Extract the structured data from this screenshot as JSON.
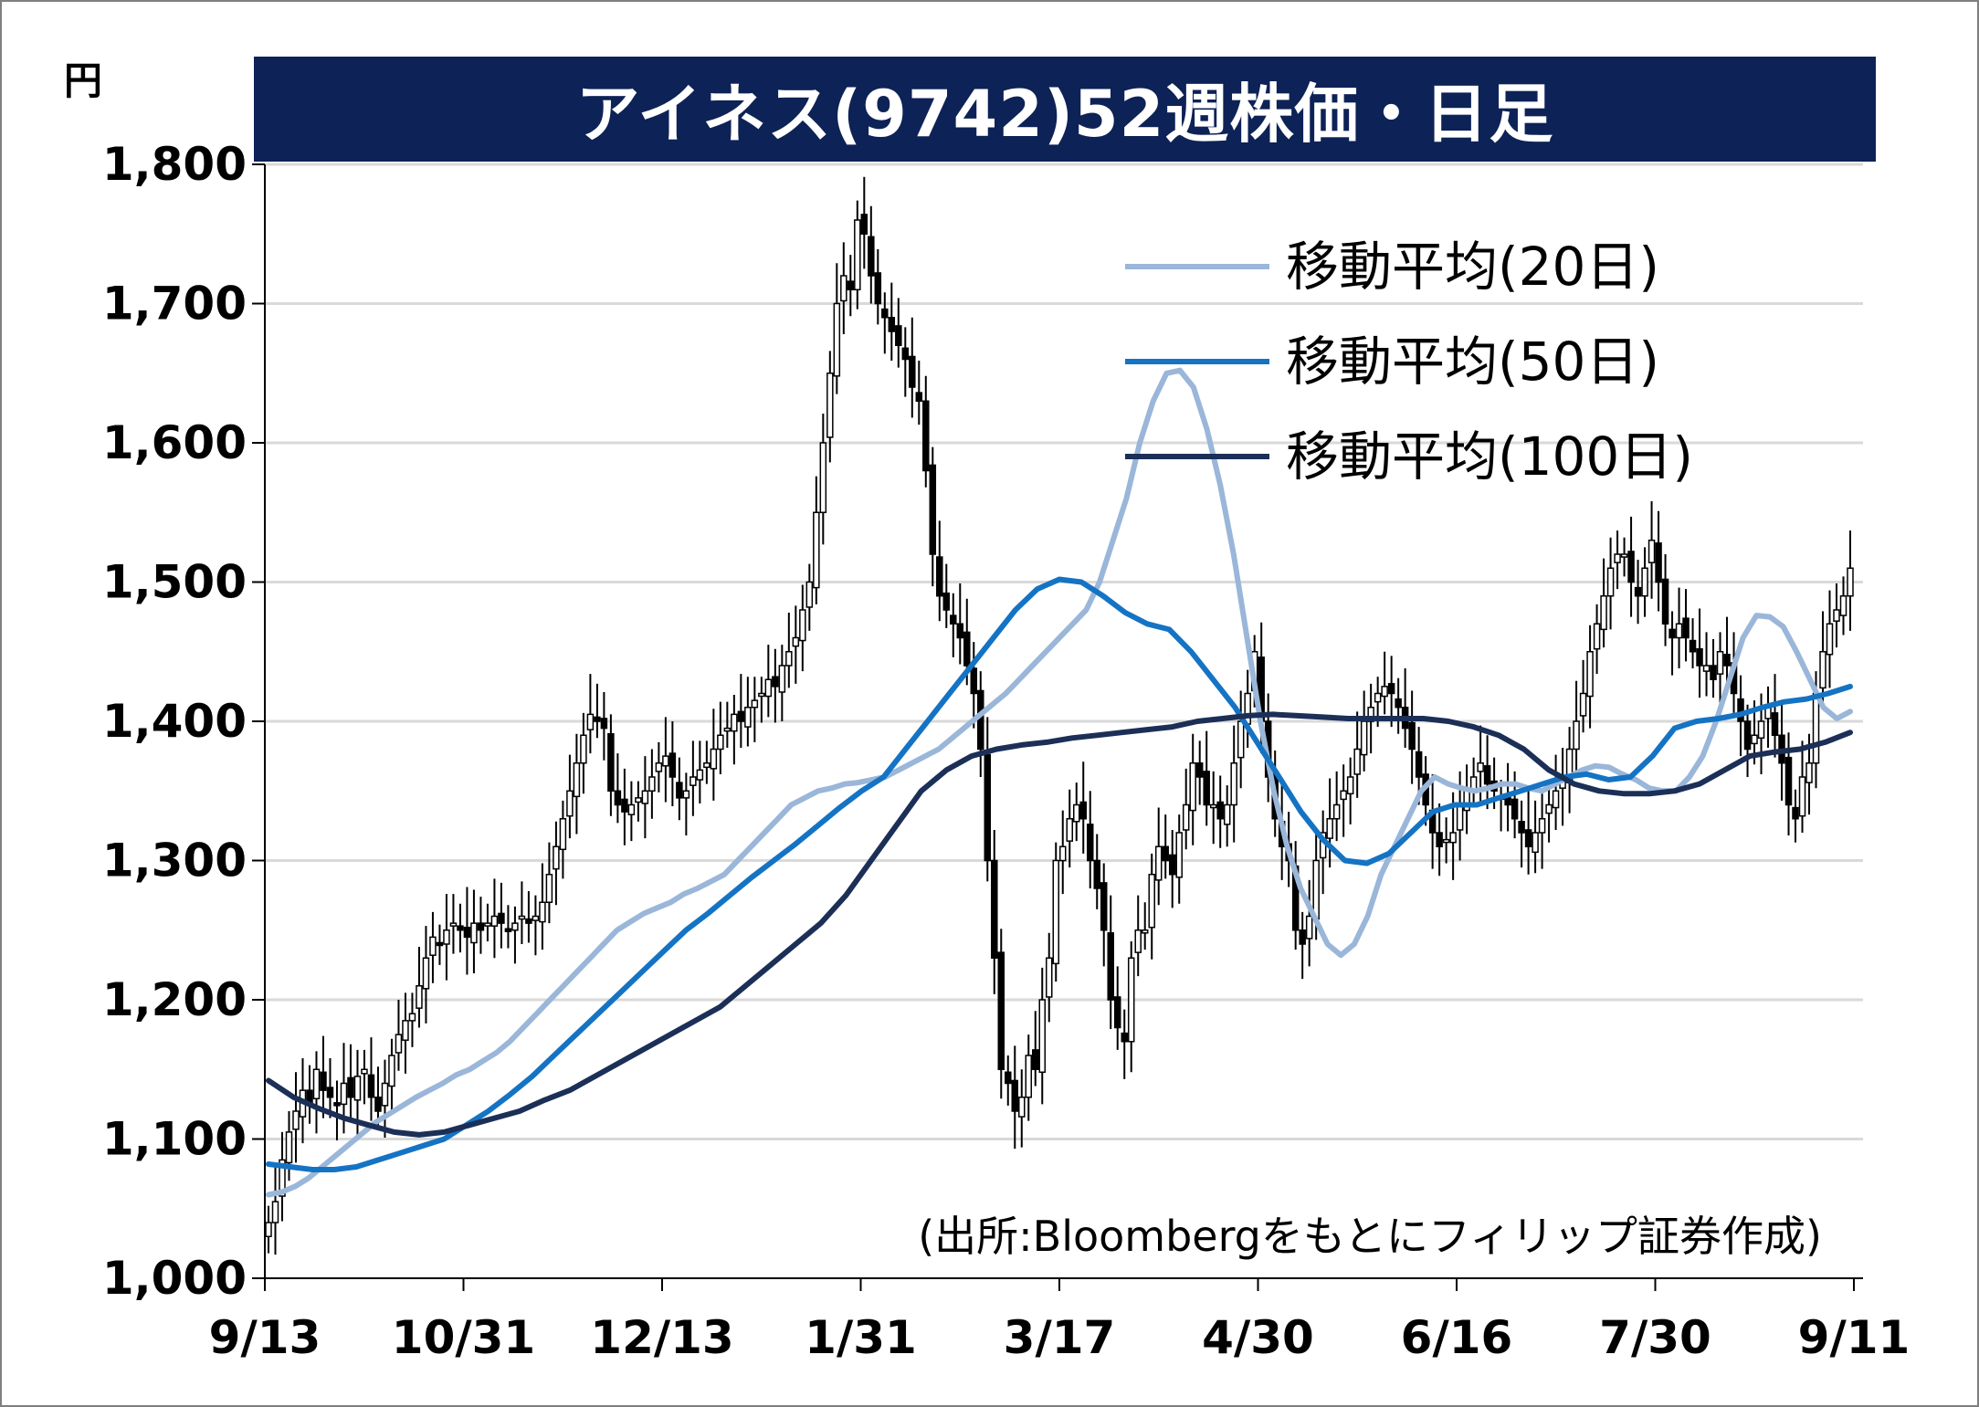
{
  "title": "アイネス(9742)52週株価・日足",
  "y_unit": "円",
  "source": "(出所:Bloombergをもとにフィリップ証券作成)",
  "colors": {
    "title_bg": "#0d2256",
    "candle": "#000000",
    "ma20": "#9ab6d9",
    "ma50": "#1573c4",
    "ma100": "#1b2f57",
    "grid": "#d9d9d9"
  },
  "chart_data": {
    "type": "candlestick",
    "ylim": [
      1000,
      1800
    ],
    "yticks": [
      1000,
      1100,
      1200,
      1300,
      1400,
      1500,
      1600,
      1700,
      1800
    ],
    "ytick_labels": [
      "1,000",
      "1,100",
      "1,200",
      "1,300",
      "1,400",
      "1,500",
      "1,600",
      "1,700",
      "1,800"
    ],
    "xtick_labels": [
      "9/13",
      "10/31",
      "12/13",
      "1/31",
      "3/17",
      "4/30",
      "6/16",
      "7/30",
      "9/11"
    ],
    "grid": "horizontal",
    "legend_position": "top-right",
    "close": [
      1040,
      1055,
      1085,
      1105,
      1120,
      1135,
      1125,
      1150,
      1135,
      1130,
      1125,
      1140,
      1130,
      1145,
      1150,
      1130,
      1120,
      1140,
      1160,
      1175,
      1185,
      1190,
      1210,
      1230,
      1245,
      1240,
      1250,
      1255,
      1250,
      1245,
      1255,
      1250,
      1255,
      1260,
      1255,
      1250,
      1255,
      1260,
      1255,
      1260,
      1270,
      1290,
      1310,
      1330,
      1350,
      1370,
      1390,
      1405,
      1400,
      1395,
      1350,
      1340,
      1335,
      1340,
      1345,
      1350,
      1360,
      1370,
      1375,
      1360,
      1345,
      1350,
      1360,
      1365,
      1370,
      1380,
      1390,
      1395,
      1405,
      1400,
      1410,
      1415,
      1420,
      1430,
      1425,
      1440,
      1450,
      1460,
      1480,
      1500,
      1550,
      1600,
      1650,
      1700,
      1720,
      1710,
      1760,
      1750,
      1720,
      1700,
      1690,
      1680,
      1670,
      1660,
      1640,
      1630,
      1580,
      1520,
      1490,
      1480,
      1470,
      1460,
      1440,
      1420,
      1380,
      1300,
      1230,
      1150,
      1140,
      1120,
      1130,
      1160,
      1150,
      1200,
      1230,
      1300,
      1310,
      1330,
      1340,
      1330,
      1300,
      1280,
      1250,
      1200,
      1180,
      1170,
      1230,
      1250,
      1250,
      1290,
      1310,
      1300,
      1290,
      1320,
      1340,
      1370,
      1360,
      1340,
      1340,
      1330,
      1340,
      1370,
      1400,
      1420,
      1450,
      1400,
      1360,
      1330,
      1310,
      1300,
      1250,
      1240,
      1260,
      1300,
      1320,
      1330,
      1340,
      1350,
      1360,
      1380,
      1400,
      1410,
      1420,
      1425,
      1420,
      1410,
      1395,
      1380,
      1360,
      1340,
      1320,
      1310,
      1315,
      1320,
      1340,
      1350,
      1360,
      1370,
      1355,
      1350,
      1345,
      1340,
      1330,
      1320,
      1310,
      1320,
      1330,
      1340,
      1350,
      1360,
      1380,
      1400,
      1420,
      1450,
      1470,
      1490,
      1510,
      1520,
      1520,
      1500,
      1490,
      1510,
      1530,
      1500,
      1470,
      1460,
      1470,
      1460,
      1450,
      1440,
      1440,
      1430,
      1450,
      1440,
      1420,
      1400,
      1380,
      1390,
      1400,
      1410,
      1390,
      1370,
      1340,
      1330,
      1360,
      1370,
      1420,
      1450,
      1470,
      1480,
      1490,
      1510
    ],
    "series": [
      {
        "name": "移動平均(20日)",
        "values": [
          1060,
          1062,
          1066,
          1072,
          1080,
          1088,
          1096,
          1104,
          1112,
          1118,
          1124,
          1130,
          1135,
          1140,
          1146,
          1150,
          1156,
          1162,
          1170,
          1180,
          1190,
          1200,
          1210,
          1220,
          1230,
          1240,
          1250,
          1256,
          1262,
          1266,
          1270,
          1276,
          1280,
          1285,
          1290,
          1300,
          1310,
          1320,
          1330,
          1340,
          1345,
          1350,
          1352,
          1355,
          1356,
          1358,
          1360,
          1365,
          1370,
          1375,
          1380,
          1388,
          1396,
          1404,
          1412,
          1420,
          1430,
          1440,
          1450,
          1460,
          1470,
          1480,
          1500,
          1530,
          1560,
          1600,
          1630,
          1650,
          1652,
          1640,
          1610,
          1570,
          1520,
          1460,
          1400,
          1350,
          1310,
          1280,
          1260,
          1240,
          1232,
          1240,
          1260,
          1290,
          1310,
          1330,
          1350,
          1360,
          1355,
          1352,
          1350,
          1352,
          1355,
          1355,
          1352,
          1350,
          1355,
          1360,
          1365,
          1368,
          1367,
          1362,
          1358,
          1352,
          1350,
          1350,
          1360,
          1375,
          1400,
          1430,
          1460,
          1476,
          1475,
          1468,
          1450,
          1430,
          1410,
          1402,
          1407
        ]
      },
      {
        "name": "移動平均(50日)",
        "values": [
          1082,
          1080,
          1078,
          1078,
          1080,
          1085,
          1090,
          1095,
          1100,
          1110,
          1120,
          1132,
          1145,
          1160,
          1175,
          1190,
          1205,
          1220,
          1235,
          1250,
          1262,
          1275,
          1288,
          1300,
          1312,
          1325,
          1338,
          1350,
          1360,
          1380,
          1400,
          1420,
          1440,
          1460,
          1480,
          1495,
          1502,
          1500,
          1490,
          1478,
          1470,
          1466,
          1450,
          1430,
          1410,
          1385,
          1360,
          1335,
          1315,
          1300,
          1298,
          1305,
          1320,
          1335,
          1340,
          1340,
          1345,
          1350,
          1355,
          1360,
          1362,
          1358,
          1360,
          1375,
          1395,
          1400,
          1402,
          1405,
          1410,
          1414,
          1416,
          1420,
          1425
        ]
      },
      {
        "name": "移動平均(100日)",
        "values": [
          1142,
          1130,
          1122,
          1115,
          1110,
          1105,
          1103,
          1105,
          1110,
          1115,
          1120,
          1128,
          1135,
          1145,
          1155,
          1165,
          1175,
          1185,
          1195,
          1210,
          1225,
          1240,
          1255,
          1275,
          1300,
          1325,
          1350,
          1365,
          1375,
          1380,
          1383,
          1385,
          1388,
          1390,
          1392,
          1394,
          1396,
          1400,
          1402,
          1404,
          1405,
          1404,
          1403,
          1402,
          1402,
          1402,
          1402,
          1400,
          1396,
          1390,
          1380,
          1365,
          1355,
          1350,
          1348,
          1348,
          1350,
          1355,
          1365,
          1375,
          1378,
          1380,
          1385,
          1392
        ]
      }
    ]
  }
}
